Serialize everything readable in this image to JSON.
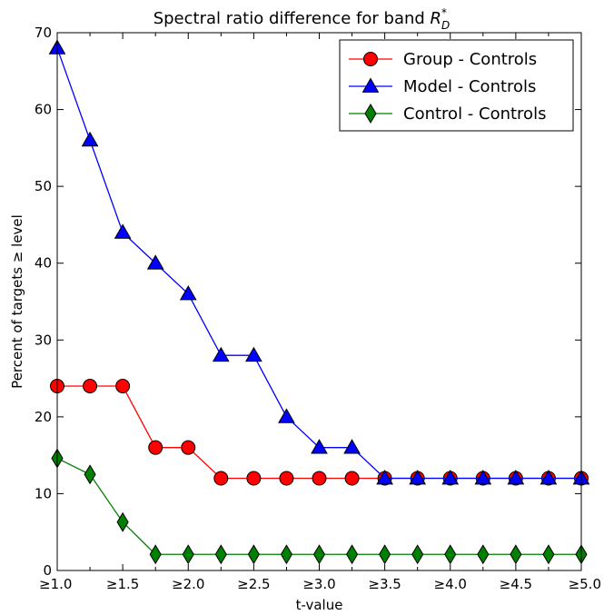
{
  "chart_data": {
    "type": "line",
    "title": "Spectral ratio difference for band",
    "title_math": {
      "base": "R",
      "sub": "D",
      "sup": "*"
    },
    "xlabel": "t-value",
    "ylabel": "Percent of targets ≥ level",
    "xlim": [
      1.0,
      5.0
    ],
    "ylim": [
      0,
      70
    ],
    "x": [
      1.0,
      1.25,
      1.5,
      1.75,
      2.0,
      2.25,
      2.5,
      2.75,
      3.0,
      3.25,
      3.5,
      3.75,
      4.0,
      4.25,
      4.5,
      4.75,
      5.0
    ],
    "x_ticks": [
      {
        "value": 1.0,
        "label": "≥1.0"
      },
      {
        "value": 1.5,
        "label": "≥1.5"
      },
      {
        "value": 2.0,
        "label": "≥2.0"
      },
      {
        "value": 2.5,
        "label": "≥2.5"
      },
      {
        "value": 3.0,
        "label": "≥3.0"
      },
      {
        "value": 3.5,
        "label": "≥3.5"
      },
      {
        "value": 4.0,
        "label": "≥4.0"
      },
      {
        "value": 4.5,
        "label": "≥4.5"
      },
      {
        "value": 5.0,
        "label": "≥5.0"
      }
    ],
    "y_ticks": [
      {
        "value": 0,
        "label": "0"
      },
      {
        "value": 10,
        "label": "10"
      },
      {
        "value": 20,
        "label": "20"
      },
      {
        "value": 30,
        "label": "30"
      },
      {
        "value": 40,
        "label": "40"
      },
      {
        "value": 50,
        "label": "50"
      },
      {
        "value": 60,
        "label": "60"
      },
      {
        "value": 70,
        "label": "70"
      }
    ],
    "grid": false,
    "legend_position": "top-right",
    "series": [
      {
        "name": "Group - Controls",
        "color": "#ff0000",
        "marker": "circle",
        "values": [
          24,
          24,
          24,
          16,
          16,
          12,
          12,
          12,
          12,
          12,
          12,
          12,
          12,
          12,
          12,
          12,
          12
        ]
      },
      {
        "name": "Model - Controls",
        "color": "#0000ff",
        "marker": "triangle",
        "values": [
          68,
          56,
          44,
          40,
          36,
          28,
          28,
          20,
          16,
          16,
          12,
          12,
          12,
          12,
          12,
          12,
          12
        ]
      },
      {
        "name": "Control - Controls",
        "color": "#008000",
        "marker": "diamond",
        "values": [
          14.6,
          12.5,
          6.3,
          2.1,
          2.1,
          2.1,
          2.1,
          2.1,
          2.1,
          2.1,
          2.1,
          2.1,
          2.1,
          2.1,
          2.1,
          2.1,
          2.1
        ]
      }
    ]
  }
}
